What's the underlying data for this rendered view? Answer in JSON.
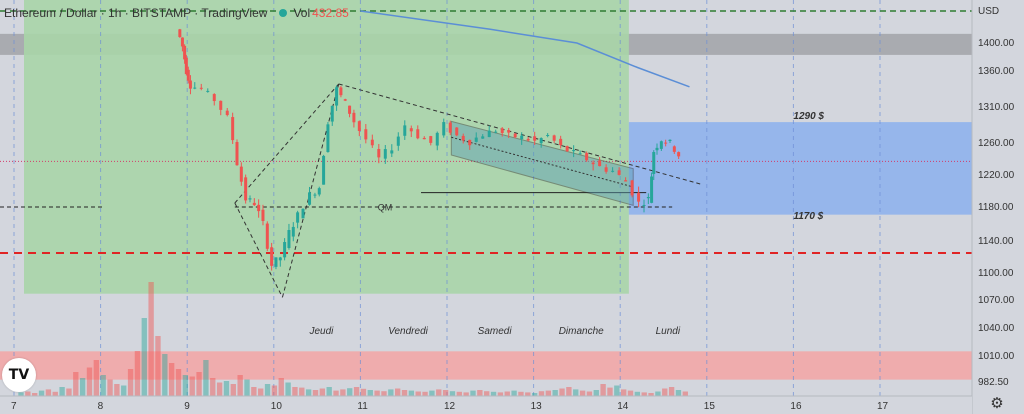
{
  "header": {
    "title": "Ethereum / Dollar · 1h · BITSTAMP · TradingView",
    "volume_label": "Vol",
    "volume_value": "432.85"
  },
  "price_axis": {
    "currency": "USD",
    "labels": [
      "1400.00",
      "1360.00",
      "1310.00",
      "1260.00",
      "1220.00",
      "1180.00",
      "1140.00",
      "1100.00",
      "1070.00",
      "1040.00",
      "1010.00",
      "982.50"
    ]
  },
  "time_axis": {
    "labels": [
      "7",
      "8",
      "9",
      "10",
      "11",
      "12",
      "13",
      "14",
      "15",
      "16",
      "17"
    ]
  },
  "day_labels": [
    "Jeudi",
    "Vendredi",
    "Samedi",
    "Dimanche",
    "Lundi"
  ],
  "annotations": {
    "upper_level": "1290 $",
    "lower_level": "1170 $",
    "qm": "QM"
  },
  "colors": {
    "background": "#d3d6dd",
    "green_zone": "#a8d5a8",
    "blue_zone": "#8fb3ec",
    "red_zone": "#f2a7a7",
    "gray_band": "#a9abb0",
    "up_candle": "#26a69a",
    "down_candle": "#ef5350",
    "red_level": "#e02424",
    "green_level": "#2e7d32",
    "ma_line": "#5b8ed6"
  },
  "icons": {
    "logo": "tradingview-logo-icon",
    "settings": "gear-icon"
  },
  "chart_data": {
    "type": "candlestick",
    "title": "Ethereum / Dollar · 1h · BITSTAMP · TradingView",
    "ylabel": "USD",
    "ylim": [
      975,
      1430
    ],
    "grid": true,
    "price_path": [
      [
        8.9,
        1430
      ],
      [
        8.96,
        1395
      ],
      [
        9.0,
        1360
      ],
      [
        9.05,
        1340
      ],
      [
        9.2,
        1335
      ],
      [
        9.35,
        1320
      ],
      [
        9.5,
        1295
      ],
      [
        9.6,
        1235
      ],
      [
        9.7,
        1190
      ],
      [
        9.8,
        1185
      ],
      [
        9.9,
        1160
      ],
      [
        10.0,
        1110
      ],
      [
        10.1,
        1120
      ],
      [
        10.2,
        1150
      ],
      [
        10.3,
        1170
      ],
      [
        10.45,
        1195
      ],
      [
        10.55,
        1205
      ],
      [
        10.65,
        1290
      ],
      [
        10.75,
        1335
      ],
      [
        10.85,
        1315
      ],
      [
        10.95,
        1290
      ],
      [
        11.1,
        1265
      ],
      [
        11.25,
        1240
      ],
      [
        11.4,
        1255
      ],
      [
        11.55,
        1285
      ],
      [
        11.7,
        1270
      ],
      [
        11.85,
        1260
      ],
      [
        12.0,
        1285
      ],
      [
        12.15,
        1270
      ],
      [
        12.3,
        1262
      ],
      [
        12.45,
        1272
      ],
      [
        12.6,
        1278
      ],
      [
        12.75,
        1270
      ],
      [
        12.9,
        1268
      ],
      [
        13.05,
        1262
      ],
      [
        13.2,
        1270
      ],
      [
        13.35,
        1255
      ],
      [
        13.5,
        1247
      ],
      [
        13.65,
        1240
      ],
      [
        13.8,
        1230
      ],
      [
        13.95,
        1225
      ],
      [
        14.1,
        1212
      ],
      [
        14.25,
        1185
      ],
      [
        14.35,
        1190
      ],
      [
        14.4,
        1250
      ],
      [
        14.5,
        1265
      ],
      [
        14.6,
        1260
      ],
      [
        14.7,
        1245
      ]
    ],
    "levels": {
      "red_dashed": 1125,
      "green_dashed": 1470,
      "black_dashed": 1180,
      "dotted_current": 1237
    },
    "zones": {
      "green_box": {
        "x": [
          7.0,
          14.1
        ],
        "y": [
          1077,
          1470
        ]
      },
      "blue_box": {
        "x": [
          14.1,
          17.9
        ],
        "y": [
          1171,
          1289
        ]
      },
      "gray_band": {
        "y": [
          1383,
          1420
        ]
      },
      "red_band": {
        "y": [
          985,
          1015
        ]
      }
    },
    "channel": {
      "upper": [
        [
          12.05,
          1290
        ],
        [
          14.15,
          1228
        ]
      ],
      "lower": [
        [
          12.05,
          1245
        ],
        [
          14.15,
          1182
        ]
      ],
      "mid": [
        [
          12.05,
          1268
        ],
        [
          14.15,
          1205
        ]
      ]
    },
    "trendlines": [
      [
        [
          9.55,
          1185
        ],
        [
          10.75,
          1342
        ]
      ],
      [
        [
          10.75,
          1342
        ],
        [
          14.95,
          1208
        ]
      ],
      [
        [
          9.55,
          1185
        ],
        [
          10.1,
          1073
        ]
      ],
      [
        [
          10.1,
          1073
        ],
        [
          10.75,
          1342
        ]
      ]
    ],
    "ma_line": [
      [
        11.0,
        1470
      ],
      [
        12.5,
        1430
      ],
      [
        13.5,
        1400
      ],
      [
        14.2,
        1365
      ],
      [
        14.8,
        1338
      ]
    ],
    "volume": {
      "ylim": [
        0,
        400
      ],
      "bars": [
        12,
        15,
        10,
        18,
        22,
        14,
        30,
        25,
        80,
        60,
        95,
        120,
        70,
        55,
        40,
        35,
        90,
        150,
        260,
        380,
        200,
        140,
        110,
        90,
        70,
        65,
        80,
        120,
        60,
        45,
        50,
        40,
        70,
        55,
        30,
        25,
        40,
        35,
        60,
        45,
        30,
        28,
        22,
        20,
        25,
        30,
        18,
        22,
        26,
        30,
        24,
        20,
        18,
        16,
        22,
        25,
        20,
        18,
        15,
        14,
        18,
        22,
        20,
        16,
        14,
        12,
        18,
        20,
        16,
        14,
        12,
        15,
        18,
        14,
        12,
        10,
        16,
        18,
        20,
        25,
        30,
        22,
        18,
        15,
        20,
        40,
        28,
        35,
        22,
        18,
        14,
        12,
        10,
        15,
        25,
        30,
        20,
        15
      ]
    }
  }
}
